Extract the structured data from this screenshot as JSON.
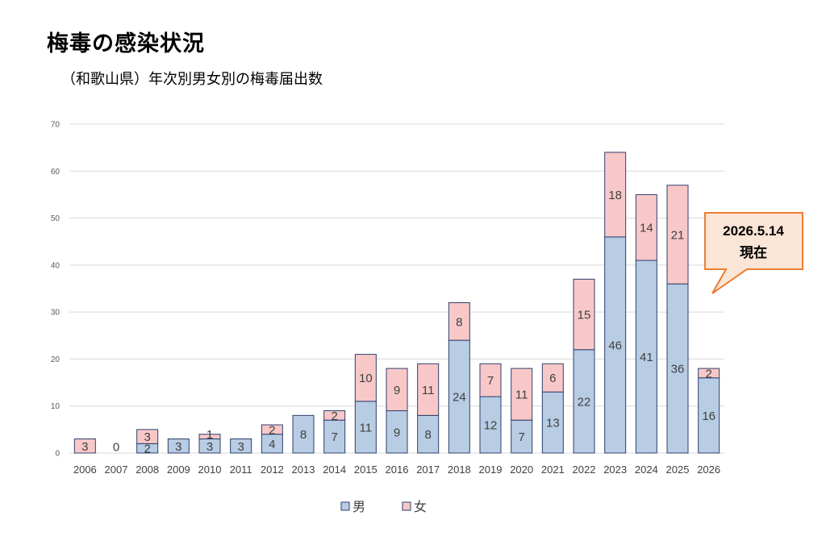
{
  "page": {
    "title": "梅毒の感染状況",
    "subtitle": "（和歌山県）年次別男女別の梅毒届出数"
  },
  "colors": {
    "male": "#b8cce4",
    "female": "#f8c8c8",
    "bar_stroke": "#2e3f6e",
    "callout_fill": "#fbe5d6",
    "callout_stroke": "#ed7d31",
    "grid": "#d9d9d9"
  },
  "callout": {
    "line1": "2026.5.14",
    "line2": "現在"
  },
  "chart_data": {
    "type": "bar",
    "stacked": true,
    "categories": [
      "2006",
      "2007",
      "2008",
      "2009",
      "2010",
      "2011",
      "2012",
      "2013",
      "2014",
      "2015",
      "2016",
      "2017",
      "2018",
      "2019",
      "2020",
      "2021",
      "2022",
      "2023",
      "2024",
      "2025",
      "2026"
    ],
    "series": [
      {
        "name": "男",
        "values": [
          0,
          0,
          2,
          3,
          3,
          3,
          4,
          8,
          7,
          11,
          9,
          8,
          24,
          12,
          7,
          13,
          22,
          46,
          41,
          36,
          16
        ]
      },
      {
        "name": "女",
        "values": [
          3,
          0,
          3,
          0,
          1,
          0,
          2,
          0,
          2,
          10,
          9,
          11,
          8,
          7,
          11,
          6,
          15,
          18,
          14,
          21,
          2
        ]
      }
    ],
    "labels": {
      "male": [
        "",
        "",
        "2",
        "3",
        "3",
        "3",
        "4",
        "8",
        "7",
        "11",
        "9",
        "8",
        "24",
        "12",
        "7",
        "13",
        "22",
        "46",
        "41",
        "36",
        "16"
      ],
      "female": [
        "3",
        "0",
        "3",
        "",
        "1",
        "",
        "2",
        "",
        "2",
        "10",
        "9",
        "11",
        "8",
        "7",
        "11",
        "6",
        "15",
        "18",
        "14",
        "21",
        "2"
      ]
    },
    "yticks": [
      "0",
      "10",
      "20",
      "30",
      "40",
      "50",
      "60",
      "70"
    ],
    "ylim": [
      0,
      70
    ],
    "grid": true,
    "legend": "bottom"
  }
}
